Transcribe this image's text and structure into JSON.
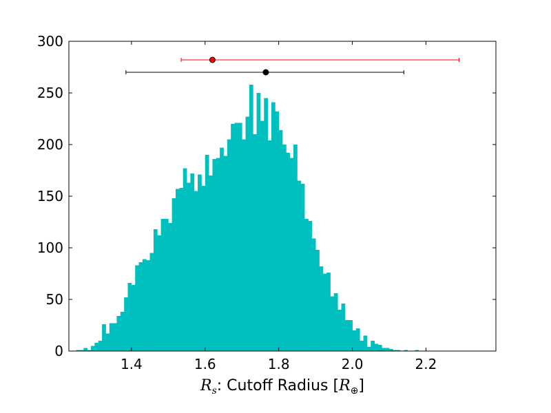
{
  "chart_data": {
    "type": "bar",
    "title": "",
    "xlabel_parts": [
      "R",
      "s",
      ": Cutoff Radius [",
      "R",
      "⊕",
      "]"
    ],
    "ylabel": "",
    "xlim": [
      1.23,
      2.39
    ],
    "ylim": [
      0,
      300
    ],
    "x_ticks": [
      1.4,
      1.6,
      1.8,
      2.0,
      2.2
    ],
    "x_tick_labels": [
      "1.4",
      "1.6",
      "1.8",
      "2.0",
      "2.2"
    ],
    "y_ticks": [
      0,
      50,
      100,
      150,
      200,
      250,
      300
    ],
    "y_tick_labels": [
      "0",
      "50",
      "100",
      "150",
      "200",
      "250",
      "300"
    ],
    "grid": false,
    "legend": "none",
    "bar_color": "#00bfbf",
    "bin_start": 1.25,
    "bin_width": 0.01,
    "values": [
      1,
      1,
      3,
      1,
      5,
      8,
      10,
      26,
      17,
      27,
      27,
      34,
      38,
      52,
      66,
      64,
      83,
      86,
      89,
      88,
      95,
      118,
      112,
      128,
      128,
      124,
      148,
      157,
      158,
      177,
      163,
      172,
      155,
      171,
      160,
      190,
      170,
      186,
      187,
      197,
      189,
      205,
      220,
      221,
      221,
      205,
      227,
      258,
      210,
      250,
      223,
      245,
      204,
      241,
      232,
      214,
      200,
      192,
      187,
      200,
      165,
      162,
      128,
      126,
      109,
      98,
      82,
      75,
      76,
      53,
      56,
      40,
      46,
      30,
      30,
      20,
      22,
      10,
      15,
      4,
      10,
      7,
      6,
      3,
      3,
      2,
      1,
      1,
      0,
      1,
      0,
      0,
      1,
      0
    ],
    "errorbars": [
      {
        "center": 1.62,
        "low": 1.535,
        "high": 2.29,
        "y": 282,
        "color": "#ff0000"
      },
      {
        "center": 1.765,
        "low": 1.385,
        "high": 2.14,
        "y": 270,
        "color": "#000000"
      }
    ]
  }
}
